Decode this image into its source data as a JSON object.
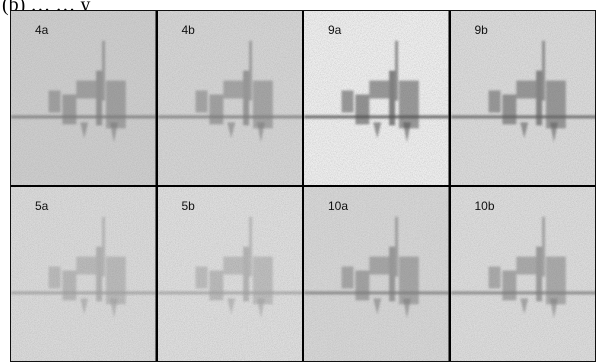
{
  "figure": {
    "caption": "(b) … … y"
  },
  "panels": [
    {
      "label": "4a",
      "shade": "#cfcfcf",
      "intensity": 0.55
    },
    {
      "label": "4b",
      "shade": "#d6d6d6",
      "intensity": 0.55
    },
    {
      "label": "9a",
      "shade": "#f1f1f1",
      "intensity": 0.85
    },
    {
      "label": "9b",
      "shade": "#dcdcdc",
      "intensity": 0.75
    },
    {
      "label": "5a",
      "shade": "#dcdcdc",
      "intensity": 0.35
    },
    {
      "label": "5b",
      "shade": "#e0e0e0",
      "intensity": 0.35
    },
    {
      "label": "10a",
      "shade": "#d8d8d8",
      "intensity": 0.55
    },
    {
      "label": "10b",
      "shade": "#dedede",
      "intensity": 0.55
    }
  ]
}
